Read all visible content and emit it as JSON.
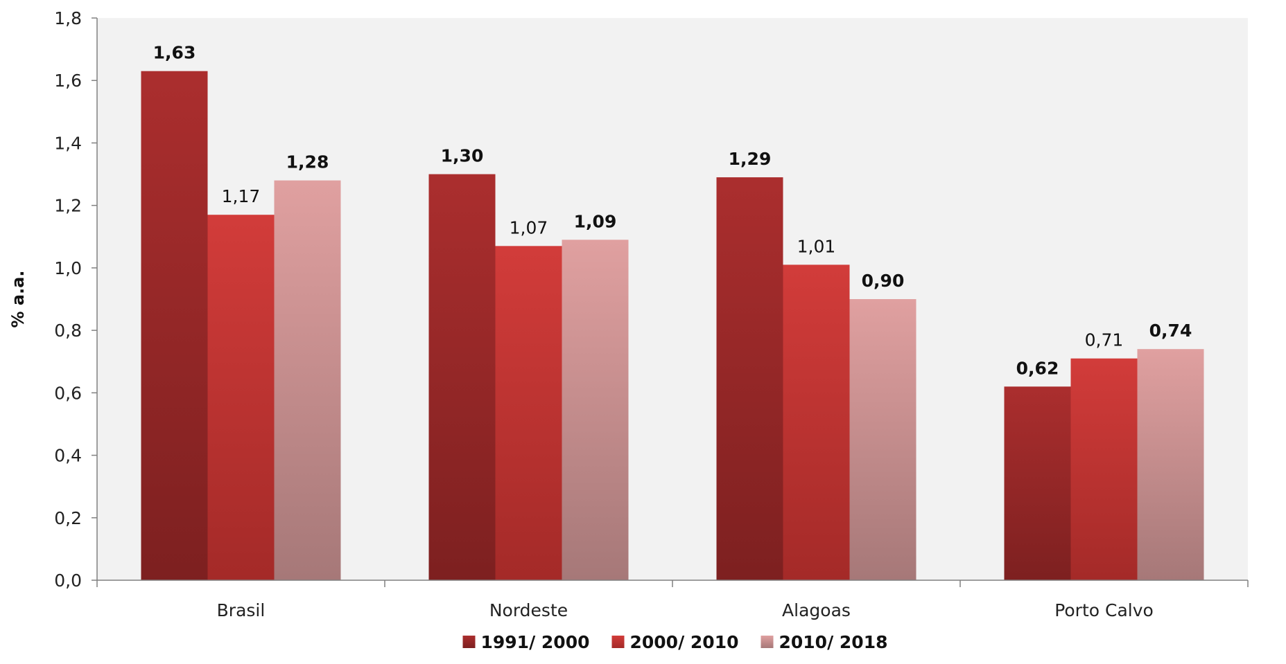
{
  "chart_data": {
    "type": "bar",
    "title": "",
    "xlabel": "",
    "ylabel": "% a.a.",
    "ylim": [
      0,
      1.8
    ],
    "yticks": [
      "0,0",
      "0,2",
      "0,4",
      "0,6",
      "0,8",
      "1,0",
      "1,2",
      "1,4",
      "1,6",
      "1,8"
    ],
    "categories": [
      "Brasil",
      "Nordeste",
      "Alagoas",
      "Porto Calvo"
    ],
    "series": [
      {
        "name": "1991/ 2000",
        "values": [
          1.63,
          1.3,
          1.29,
          0.62
        ],
        "labels": [
          "1,63",
          "1,30",
          "1,29",
          "0,62"
        ],
        "label_bold": true,
        "color_top": "#ab2e2e",
        "color_bottom": "#7d2020"
      },
      {
        "name": "2000/ 2010",
        "values": [
          1.17,
          1.07,
          1.01,
          0.71
        ],
        "labels": [
          "1,17",
          "1,07",
          "1,01",
          "0,71"
        ],
        "label_bold": false,
        "color_top": "#d23c3a",
        "color_bottom": "#a42a28"
      },
      {
        "name": "2010/ 2018",
        "values": [
          1.28,
          1.09,
          0.9,
          0.74
        ],
        "labels": [
          "1,28",
          "1,09",
          "0,90",
          "0,74"
        ],
        "label_bold": true,
        "color_top": "#e0a0a0",
        "color_bottom": "#a67878"
      }
    ],
    "grid": false,
    "plot_background": "#f2f2f2",
    "legend_position": "bottom"
  }
}
